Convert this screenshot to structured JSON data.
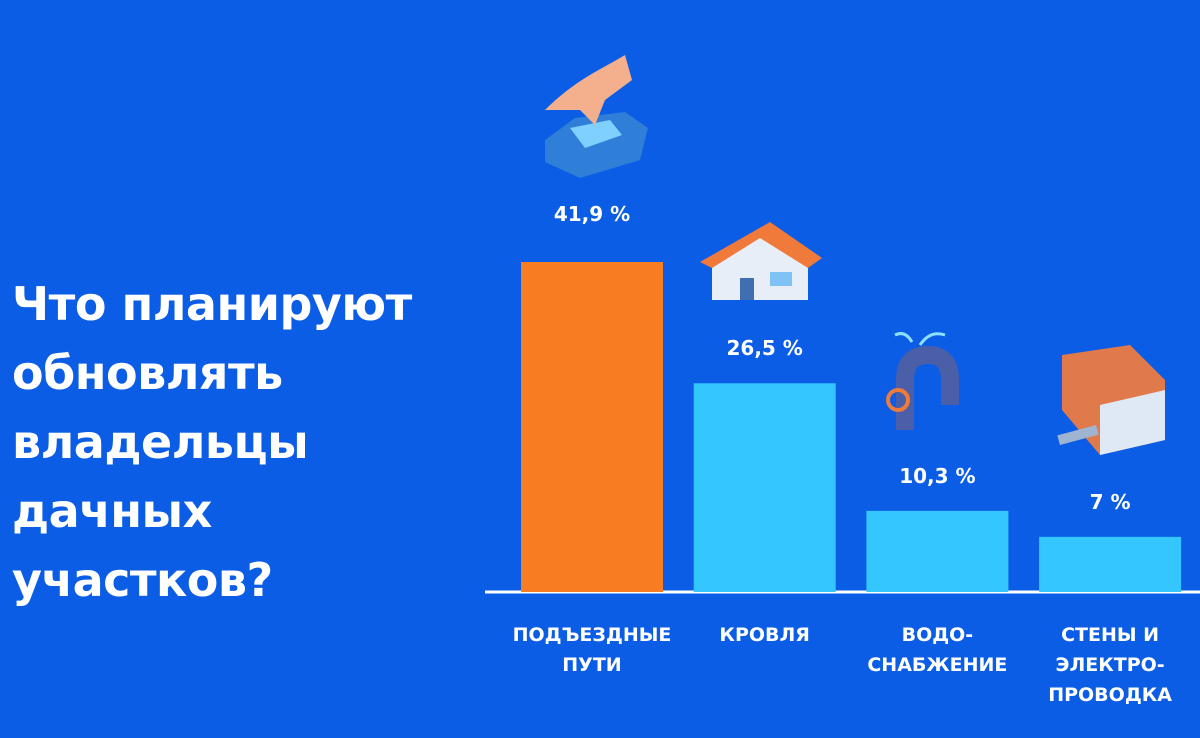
{
  "chart_data": {
    "type": "bar",
    "title": "Что планируют\nобновлять\nвладельцы\nдачных\nучастков?",
    "categories": [
      "ПОДЪЕЗДНЫЕ\nПУТИ",
      "КРОВЛЯ",
      "ВОДО-\nСНАБЖЕНИЕ",
      "СТЕНЫ И\nЭЛЕКТРО-\nПРОВОДКА"
    ],
    "values": [
      41.9,
      26.5,
      10.3,
      7
    ],
    "value_labels": [
      "41,9 %",
      "26,5 %",
      "10,3 %",
      "7 %"
    ],
    "colors": [
      "#f87c22",
      "#34c6ff",
      "#34c6ff",
      "#34c6ff"
    ]
  }
}
